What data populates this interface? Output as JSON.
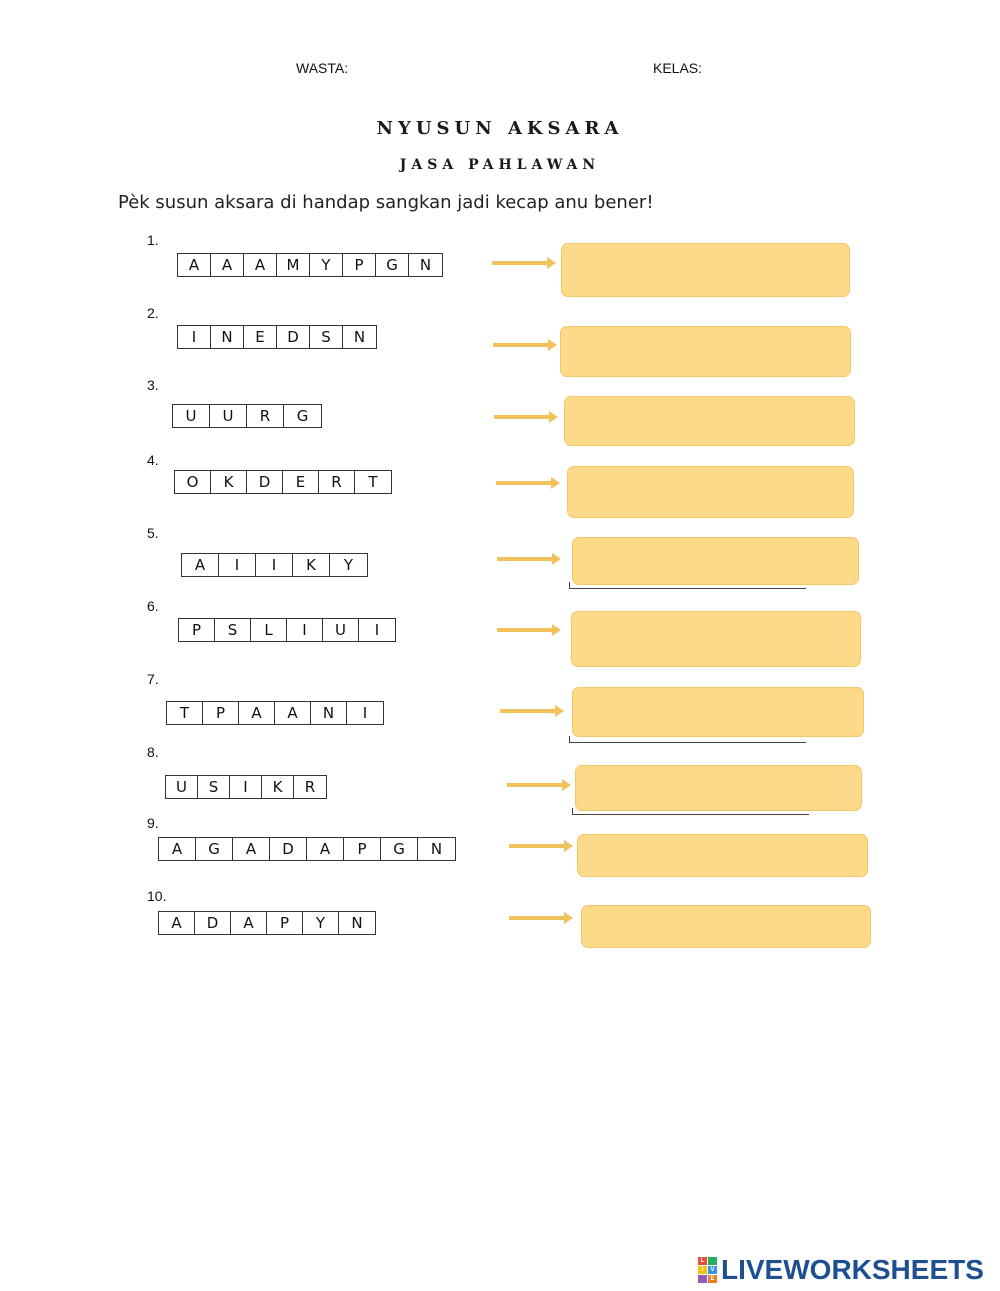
{
  "header": {
    "name_label": "WASTA:",
    "class_label": "KELAS:"
  },
  "title": "NYUSUN AKSARA",
  "subtitle": "JASA PAHLAWAN",
  "instruction": "Pèk susun aksara di handap sangkan jadi kecap anu bener!",
  "questions": [
    {
      "number": "1.",
      "letters": [
        "A",
        "A",
        "A",
        "M",
        "Y",
        "P",
        "G",
        "N"
      ]
    },
    {
      "number": "2.",
      "letters": [
        "I",
        "N",
        "E",
        "D",
        "S",
        "N"
      ]
    },
    {
      "number": "3.",
      "letters": [
        "U",
        "U",
        "R",
        "G"
      ]
    },
    {
      "number": "4.",
      "letters": [
        "O",
        "K",
        "D",
        "E",
        "R",
        "T"
      ]
    },
    {
      "number": "5.",
      "letters": [
        "A",
        "I",
        "I",
        "K",
        "Y"
      ]
    },
    {
      "number": "6.",
      "letters": [
        "P",
        "S",
        "L",
        "I",
        "U",
        "I"
      ]
    },
    {
      "number": "7.",
      "letters": [
        "T",
        "P",
        "A",
        "A",
        "N",
        "I"
      ]
    },
    {
      "number": "8.",
      "letters": [
        "U",
        "S",
        "I",
        "K",
        "R"
      ]
    },
    {
      "number": "9.",
      "letters": [
        "A",
        "G",
        "A",
        "D",
        "A",
        "P",
        "G",
        "N"
      ]
    },
    {
      "number": "10.",
      "letters": [
        "A",
        "D",
        "A",
        "P",
        "Y",
        "N"
      ]
    }
  ],
  "logo": {
    "text": "LIVEWORKSHEETS",
    "badge": [
      "L",
      "I",
      "V",
      "E"
    ]
  },
  "colors": {
    "answer_fill": "#fdd98a",
    "answer_border": "#f3c766",
    "arrow": "#f2c15a",
    "logo": "#1d4f91"
  }
}
